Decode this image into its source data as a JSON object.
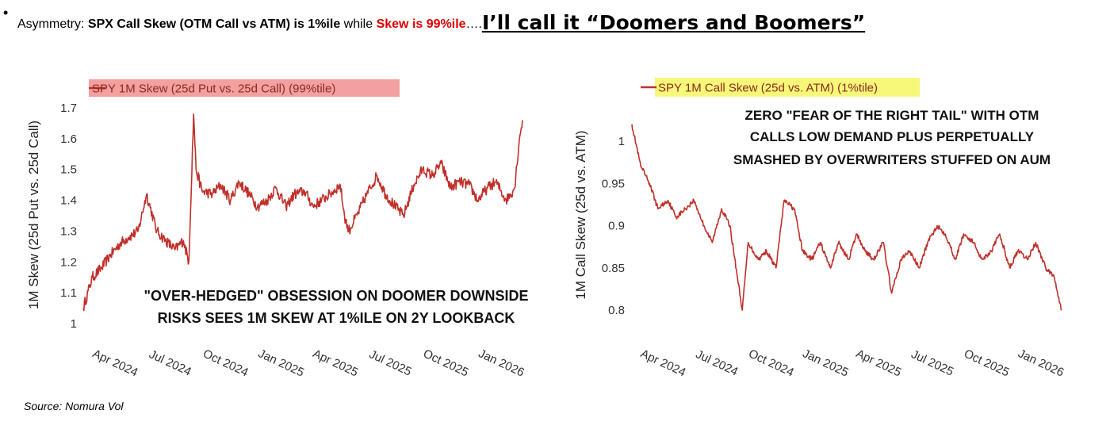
{
  "header": {
    "bullet": "•",
    "prefix": "Asymmetry: ",
    "call_skew": "SPX Call Skew (OTM Call vs ATM)",
    "mid": " is 1%ile",
    "while": " while ",
    "skew": "Skew is 99%ile",
    "ellipsis": "….",
    "big": "I’ll call it “Doomers and Boomers”"
  },
  "source": "Source: Nomura Vol",
  "colors": {
    "series": "#c0302a",
    "legend_left_bg": "#f2a0a0",
    "legend_right_bg": "#f7f77a",
    "header_red": "#e00000"
  },
  "chart_data": [
    {
      "type": "line",
      "legend": "SPY 1M Skew (25d Put vs. 25d Call) (99%tile)",
      "ylabel": "1M Skew (25d Put vs. 25d Call)",
      "yticks": [
        "1.7",
        "1.6",
        "1.5",
        "1.4",
        "1.3",
        "1.2",
        "1.1",
        "1"
      ],
      "ylim": [
        1.0,
        1.7
      ],
      "xticks": [
        "Apr 2024",
        "Jul 2024",
        "Oct 2024",
        "Jan 2025",
        "Apr 2025",
        "Jul 2025",
        "Oct 2025",
        "Jan 2026"
      ],
      "annotation": [
        "\"OVER-HEDGED\" OBSESSION ON DOOMER DOWNSIDE",
        "RISKS SEES 1M SKEW AT 1%ILE ON 2Y LOOKBACK"
      ],
      "grid": false,
      "series": [
        {
          "x": [
            "2024-01-31",
            "2024-02-15",
            "2024-03-01",
            "2024-03-15",
            "2024-04-01",
            "2024-04-15",
            "2024-05-01",
            "2024-05-15",
            "2024-06-01",
            "2024-06-15",
            "2024-07-01",
            "2024-07-15",
            "2024-07-24",
            "2024-08-01",
            "2024-08-05",
            "2024-08-15",
            "2024-09-01",
            "2024-09-15",
            "2024-10-01",
            "2024-10-15",
            "2024-11-01",
            "2024-11-15",
            "2024-12-01",
            "2024-12-15",
            "2025-01-01",
            "2025-01-15",
            "2025-02-01",
            "2025-02-15",
            "2025-03-01",
            "2025-03-15",
            "2025-04-01",
            "2025-04-08",
            "2025-04-15",
            "2025-05-01",
            "2025-05-15",
            "2025-06-01",
            "2025-06-15",
            "2025-07-01",
            "2025-07-15",
            "2025-08-01",
            "2025-08-15",
            "2025-09-01",
            "2025-09-15",
            "2025-10-01",
            "2025-10-15",
            "2025-11-01",
            "2025-11-15",
            "2025-12-01",
            "2025-12-15",
            "2026-01-01",
            "2026-01-15",
            "2026-01-23",
            "2026-01-28"
          ],
          "y": [
            1.05,
            1.15,
            1.18,
            1.22,
            1.26,
            1.28,
            1.3,
            1.42,
            1.3,
            1.27,
            1.24,
            1.27,
            1.2,
            1.68,
            1.5,
            1.43,
            1.42,
            1.45,
            1.4,
            1.46,
            1.42,
            1.38,
            1.4,
            1.44,
            1.38,
            1.42,
            1.43,
            1.38,
            1.4,
            1.42,
            1.45,
            1.35,
            1.3,
            1.36,
            1.42,
            1.48,
            1.42,
            1.38,
            1.35,
            1.45,
            1.5,
            1.48,
            1.52,
            1.44,
            1.46,
            1.45,
            1.4,
            1.44,
            1.46,
            1.4,
            1.44,
            1.6,
            1.66
          ]
        }
      ]
    },
    {
      "type": "line",
      "legend": "SPY 1M Call Skew (25d vs. ATM) (1%tile)",
      "ylabel": "1M Call Skew (25d vs. ATM)",
      "yticks": [
        "1",
        "0.95",
        "0.9",
        "0.85",
        "0.8"
      ],
      "ylim": [
        0.78,
        1.03
      ],
      "xticks": [
        "Apr 2024",
        "Jul 2024",
        "Oct 2024",
        "Jan 2025",
        "Apr 2025",
        "Jul 2025",
        "Oct 2025",
        "Jan 2026"
      ],
      "annotation": [
        "ZERO \"FEAR OF THE RIGHT TAIL\" WITH OTM",
        "CALLS LOW DEMAND PLUS PERPETUALLY",
        "SMASHED BY OVERWRITERS STUFFED ON AUM"
      ],
      "grid": false,
      "series": [
        {
          "x": [
            "2024-01-31",
            "2024-02-15",
            "2024-03-01",
            "2024-03-15",
            "2024-04-01",
            "2024-04-15",
            "2024-05-01",
            "2024-05-15",
            "2024-06-01",
            "2024-06-15",
            "2024-07-01",
            "2024-07-15",
            "2024-08-05",
            "2024-08-15",
            "2024-09-01",
            "2024-09-15",
            "2024-10-01",
            "2024-10-15",
            "2024-11-01",
            "2024-11-15",
            "2024-12-01",
            "2024-12-15",
            "2025-01-01",
            "2025-01-15",
            "2025-02-01",
            "2025-02-15",
            "2025-03-01",
            "2025-03-15",
            "2025-04-01",
            "2025-04-15",
            "2025-05-01",
            "2025-05-15",
            "2025-06-01",
            "2025-06-15",
            "2025-07-01",
            "2025-07-15",
            "2025-08-01",
            "2025-08-15",
            "2025-09-01",
            "2025-09-15",
            "2025-10-01",
            "2025-10-15",
            "2025-11-01",
            "2025-11-15",
            "2025-12-01",
            "2025-12-15",
            "2026-01-01",
            "2026-01-15",
            "2026-01-28"
          ],
          "y": [
            1.02,
            0.97,
            0.95,
            0.92,
            0.93,
            0.91,
            0.92,
            0.93,
            0.9,
            0.88,
            0.92,
            0.9,
            0.8,
            0.88,
            0.86,
            0.87,
            0.85,
            0.93,
            0.92,
            0.87,
            0.86,
            0.88,
            0.85,
            0.88,
            0.86,
            0.89,
            0.87,
            0.86,
            0.88,
            0.82,
            0.86,
            0.87,
            0.85,
            0.88,
            0.9,
            0.89,
            0.86,
            0.89,
            0.88,
            0.86,
            0.87,
            0.89,
            0.85,
            0.87,
            0.86,
            0.88,
            0.85,
            0.84,
            0.8
          ]
        }
      ]
    }
  ]
}
